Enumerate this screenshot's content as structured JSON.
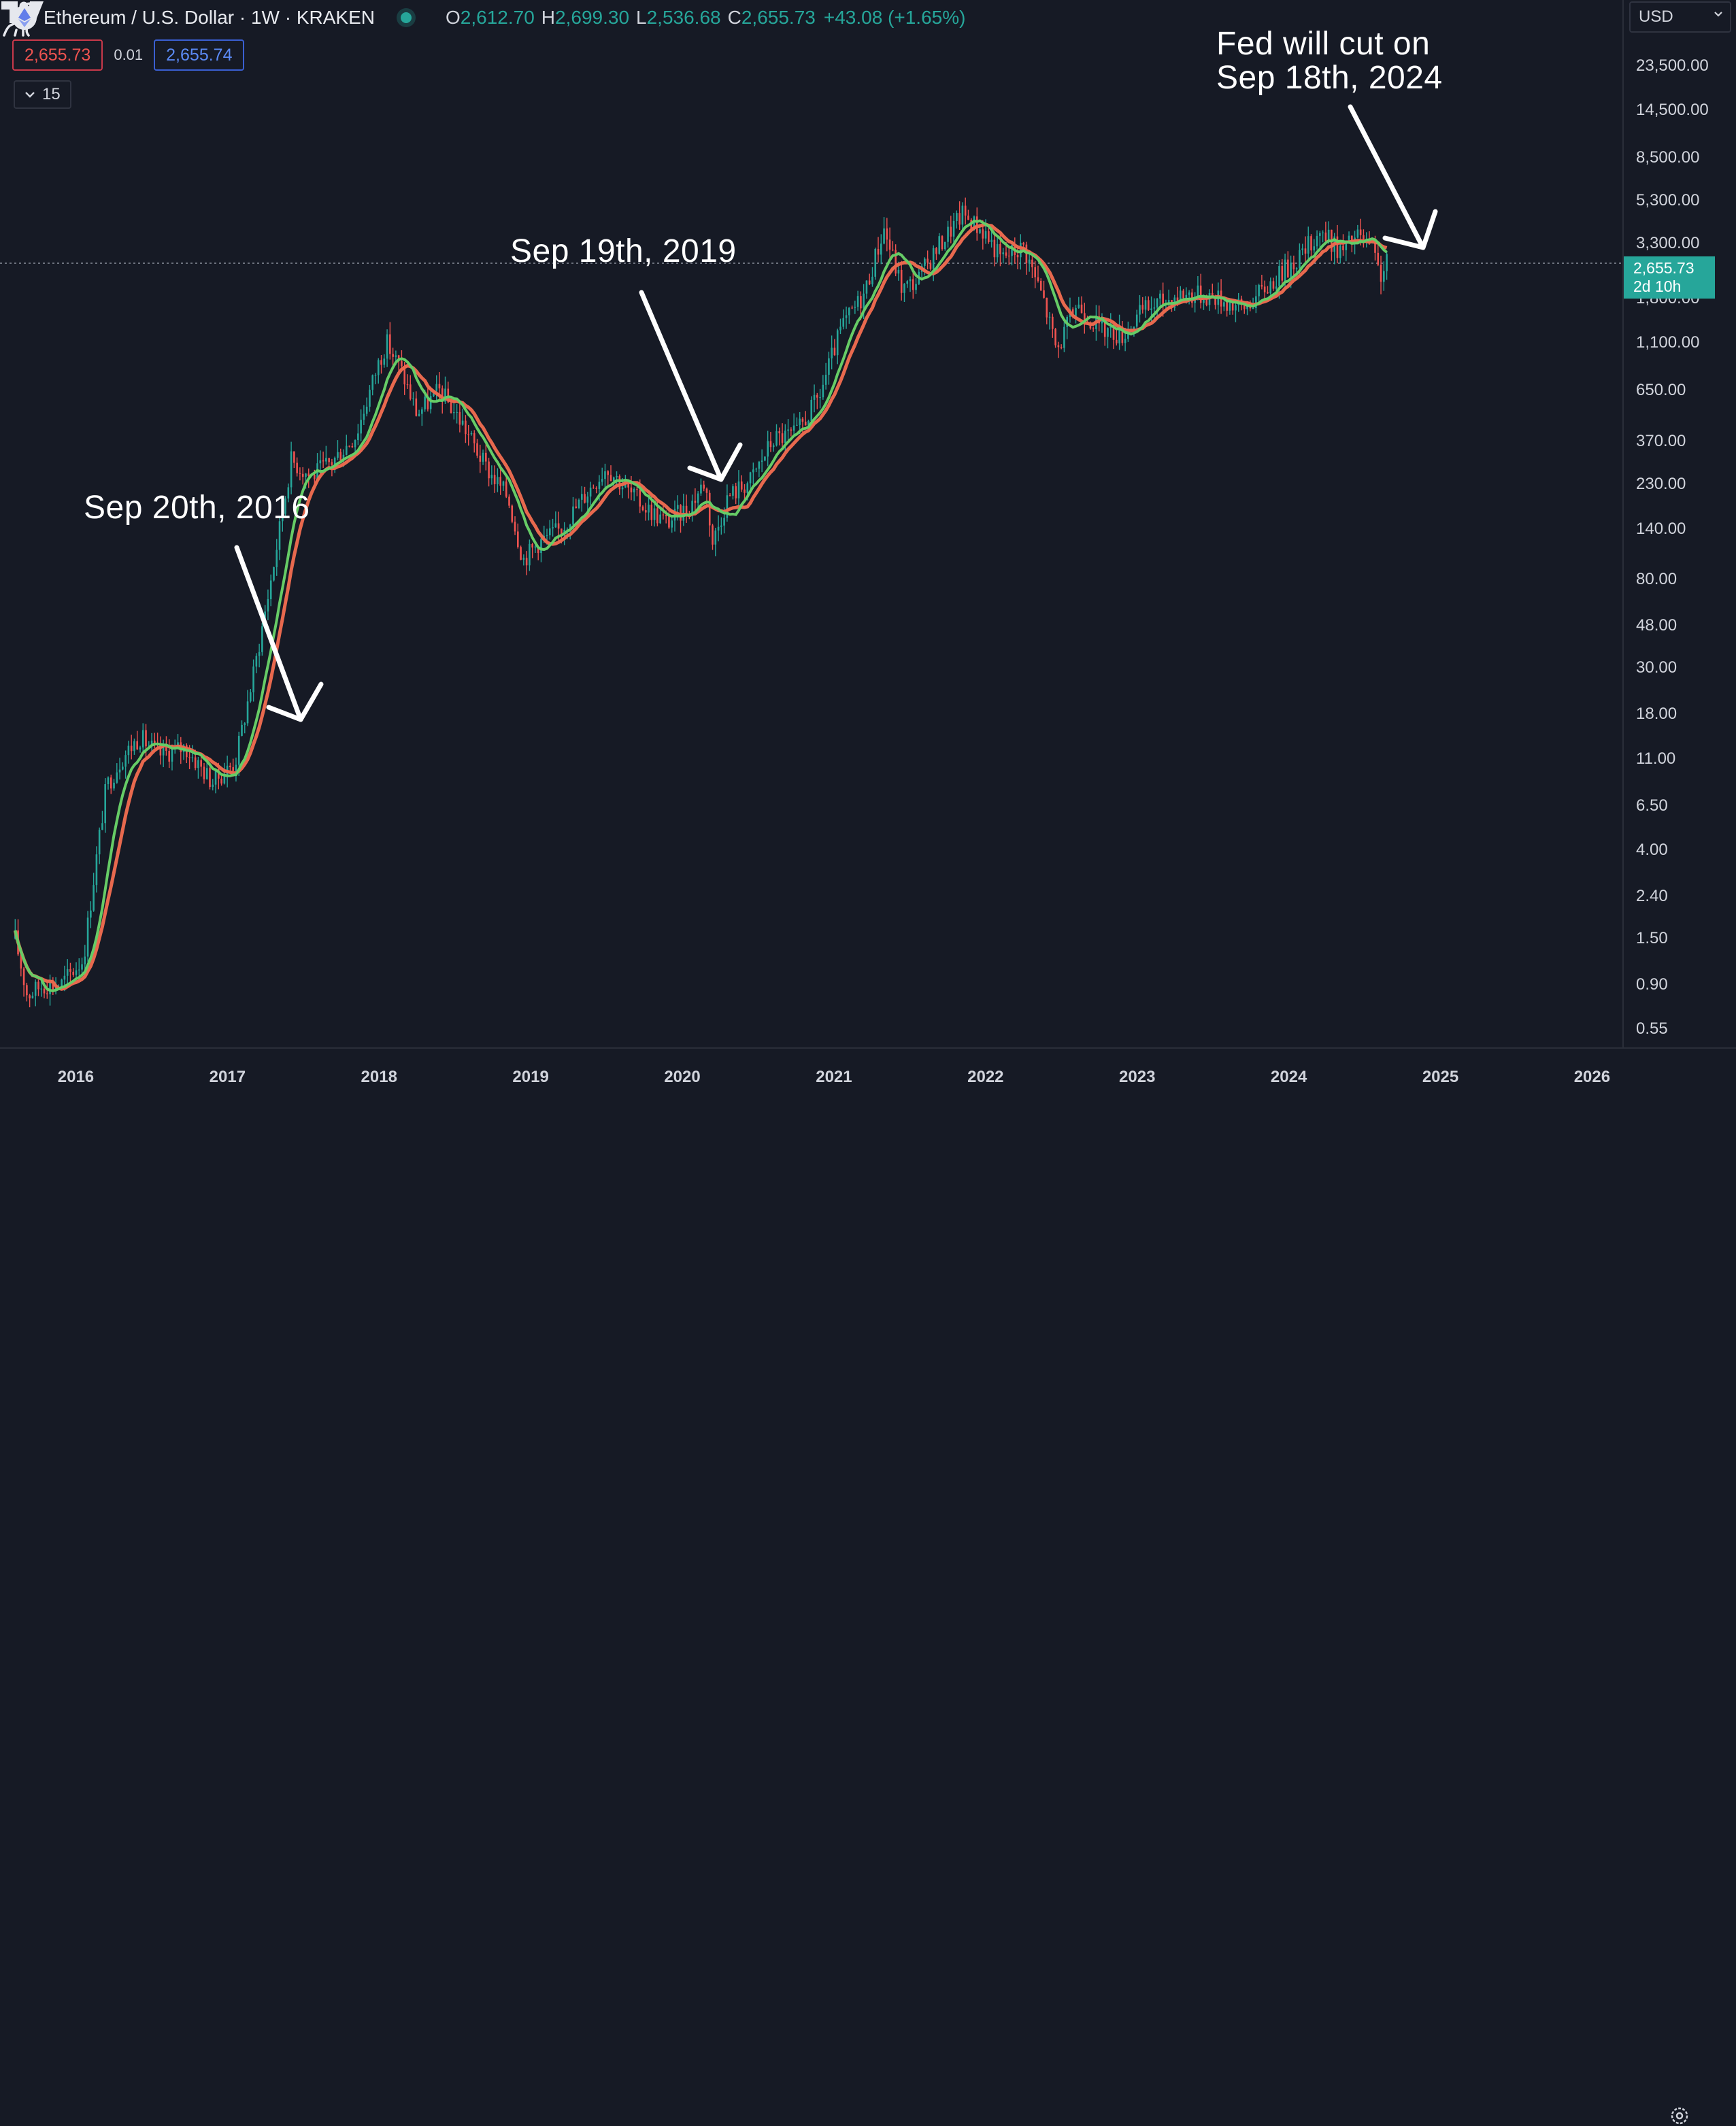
{
  "header": {
    "title": "Ethereum / U.S. Dollar · 1W · KRAKEN",
    "open_key": "O",
    "open": "2,612.70",
    "high_key": "H",
    "high": "2,699.30",
    "low_key": "L",
    "low": "2,536.68",
    "close_key": "C",
    "close": "2,655.73",
    "change": "+43.08 (+1.65%)"
  },
  "trade": {
    "bid": "2,655.73",
    "spread": "0.01",
    "ask": "2,655.74"
  },
  "indicators_toggle": {
    "count": "15"
  },
  "currency": "USD",
  "price_tag": {
    "price": "2,655.73",
    "countdown": "2d 10h"
  },
  "colors": {
    "up": "#26a69a",
    "down": "#ef5350",
    "ma_fast": "#66cc66",
    "ma_slow": "#e8694e",
    "background": "#161a25"
  },
  "annotations": [
    {
      "text": "Sep 20th, 2016"
    },
    {
      "text": "Sep 19th, 2019"
    },
    {
      "text": "Fed will cut on\nSep 18th, 2024"
    }
  ],
  "icons": [
    "ethereum-icon",
    "chevron-down-icon",
    "tradingview-logo-icon",
    "dinosaur-icon",
    "gear-icon",
    "arrow-icon"
  ],
  "chart_data": {
    "type": "candlestick",
    "y_scale": "log",
    "ylim": [
      0.45,
      30000
    ],
    "y_ticks": [
      "0.55",
      "0.90",
      "1.50",
      "2.40",
      "4.00",
      "6.50",
      "11.00",
      "18.00",
      "30.00",
      "48.00",
      "80.00",
      "140.00",
      "230.00",
      "370.00",
      "650.00",
      "1,100.00",
      "1,800.00",
      "3,300.00",
      "5,300.00",
      "8,500.00",
      "14,500.00",
      "23,500.00"
    ],
    "x_ticks": [
      "2016",
      "2017",
      "2018",
      "2019",
      "2020",
      "2021",
      "2022",
      "2023",
      "2024",
      "2025",
      "2026"
    ],
    "xlim": [
      2015.5,
      2026.2
    ],
    "last_price": 2655.73,
    "price_path": [
      {
        "t": 2015.6,
        "p": 1.5
      },
      {
        "t": 2015.68,
        "p": 0.8
      },
      {
        "t": 2015.78,
        "p": 0.9
      },
      {
        "t": 2015.9,
        "p": 0.9
      },
      {
        "t": 2016.05,
        "p": 1.2
      },
      {
        "t": 2016.12,
        "p": 3.0
      },
      {
        "t": 2016.2,
        "p": 8.0
      },
      {
        "t": 2016.3,
        "p": 11.0
      },
      {
        "t": 2016.42,
        "p": 14.0
      },
      {
        "t": 2016.55,
        "p": 11.5
      },
      {
        "t": 2016.72,
        "p": 12.5
      },
      {
        "t": 2016.9,
        "p": 8.5
      },
      {
        "t": 2017.05,
        "p": 10.5
      },
      {
        "t": 2017.18,
        "p": 30.0
      },
      {
        "t": 2017.3,
        "p": 90.0
      },
      {
        "t": 2017.42,
        "p": 300.0
      },
      {
        "t": 2017.55,
        "p": 250.0
      },
      {
        "t": 2017.7,
        "p": 300.0
      },
      {
        "t": 2017.85,
        "p": 400.0
      },
      {
        "t": 2018.0,
        "p": 900.0
      },
      {
        "t": 2018.05,
        "p": 1100.0
      },
      {
        "t": 2018.15,
        "p": 800.0
      },
      {
        "t": 2018.25,
        "p": 500.0
      },
      {
        "t": 2018.4,
        "p": 650.0
      },
      {
        "t": 2018.55,
        "p": 450.0
      },
      {
        "t": 2018.7,
        "p": 280.0
      },
      {
        "t": 2018.85,
        "p": 200.0
      },
      {
        "t": 2018.95,
        "p": 100.0
      },
      {
        "t": 2019.05,
        "p": 120.0
      },
      {
        "t": 2019.2,
        "p": 140.0
      },
      {
        "t": 2019.35,
        "p": 200.0
      },
      {
        "t": 2019.5,
        "p": 280.0
      },
      {
        "t": 2019.65,
        "p": 210.0
      },
      {
        "t": 2019.75,
        "p": 180.0
      },
      {
        "t": 2019.9,
        "p": 150.0
      },
      {
        "t": 2020.05,
        "p": 180.0
      },
      {
        "t": 2020.15,
        "p": 240.0
      },
      {
        "t": 2020.2,
        "p": 120.0
      },
      {
        "t": 2020.3,
        "p": 200.0
      },
      {
        "t": 2020.45,
        "p": 240.0
      },
      {
        "t": 2020.6,
        "p": 380.0
      },
      {
        "t": 2020.75,
        "p": 400.0
      },
      {
        "t": 2020.9,
        "p": 600.0
      },
      {
        "t": 2021.05,
        "p": 1300.0
      },
      {
        "t": 2021.2,
        "p": 1900.0
      },
      {
        "t": 2021.33,
        "p": 3900.0
      },
      {
        "t": 2021.45,
        "p": 2000.0
      },
      {
        "t": 2021.55,
        "p": 2200.0
      },
      {
        "t": 2021.7,
        "p": 3300.0
      },
      {
        "t": 2021.85,
        "p": 4600.0
      },
      {
        "t": 2022.0,
        "p": 3700.0
      },
      {
        "t": 2022.1,
        "p": 2800.0
      },
      {
        "t": 2022.25,
        "p": 3200.0
      },
      {
        "t": 2022.38,
        "p": 1800.0
      },
      {
        "t": 2022.47,
        "p": 1000.0
      },
      {
        "t": 2022.6,
        "p": 1700.0
      },
      {
        "t": 2022.75,
        "p": 1300.0
      },
      {
        "t": 2022.9,
        "p": 1200.0
      },
      {
        "t": 2023.05,
        "p": 1600.0
      },
      {
        "t": 2023.3,
        "p": 1900.0
      },
      {
        "t": 2023.5,
        "p": 1850.0
      },
      {
        "t": 2023.7,
        "p": 1600.0
      },
      {
        "t": 2023.9,
        "p": 2200.0
      },
      {
        "t": 2024.1,
        "p": 3000.0
      },
      {
        "t": 2024.2,
        "p": 3800.0
      },
      {
        "t": 2024.35,
        "p": 3000.0
      },
      {
        "t": 2024.45,
        "p": 3600.0
      },
      {
        "t": 2024.55,
        "p": 3100.0
      },
      {
        "t": 2024.6,
        "p": 2300.0
      },
      {
        "t": 2024.65,
        "p": 2655.73
      }
    ]
  }
}
